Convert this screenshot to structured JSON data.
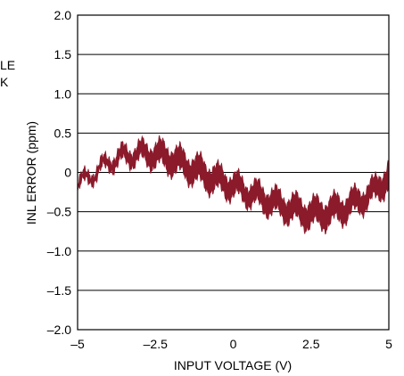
{
  "chart_data": {
    "type": "line",
    "title": "",
    "xlabel": "INPUT VOLTAGE (V)",
    "ylabel": "INL ERROR (ppm)",
    "xlim": [
      -5,
      5
    ],
    "ylim": [
      -2.0,
      2.0
    ],
    "x_ticks": [
      "–5",
      "–2.5",
      "0",
      "2.5",
      "5"
    ],
    "x_tick_values": [
      -5,
      -2.5,
      0,
      2.5,
      5
    ],
    "y_ticks": [
      "2.0",
      "1.5",
      "1.0",
      "0.5",
      "0",
      "–0.5",
      "–1.0",
      "–1.5",
      "–2.0"
    ],
    "y_tick_values": [
      2.0,
      1.5,
      1.0,
      0.5,
      0,
      -0.5,
      -1.0,
      -1.5,
      -2.0
    ],
    "grid": "horizontal",
    "legend_fragment": [
      "LE",
      "K"
    ],
    "series_color": "#8b1a2b",
    "series": [
      {
        "x": [
          -5.0,
          -4.5,
          -4.0,
          -3.5,
          -3.0,
          -2.5,
          -2.0,
          -1.5,
          -1.0,
          -0.5,
          0.0,
          0.5,
          1.0,
          1.5,
          2.0,
          2.5,
          3.0,
          3.5,
          4.0,
          4.5,
          5.0
        ],
        "upper": [
          -0.02,
          0.12,
          0.28,
          0.38,
          0.42,
          0.44,
          0.4,
          0.3,
          0.22,
          0.12,
          0.04,
          -0.06,
          -0.12,
          -0.2,
          -0.26,
          -0.3,
          -0.28,
          -0.24,
          -0.16,
          -0.05,
          0.2
        ],
        "lower": [
          -0.3,
          -0.16,
          -0.02,
          0.04,
          0.06,
          0.02,
          -0.05,
          -0.14,
          -0.24,
          -0.32,
          -0.38,
          -0.46,
          -0.55,
          -0.63,
          -0.7,
          -0.76,
          -0.74,
          -0.68,
          -0.58,
          -0.45,
          -0.28
        ]
      }
    ]
  }
}
